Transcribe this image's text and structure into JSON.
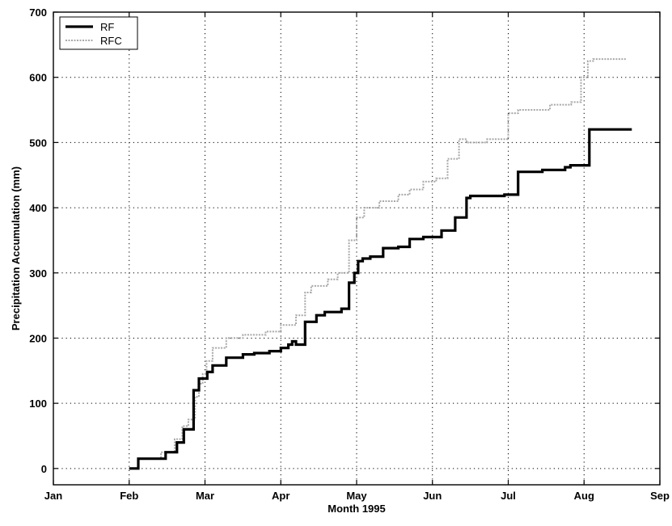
{
  "chart_data": {
    "type": "line",
    "title": "",
    "xlabel": "Month 1995",
    "ylabel": "Precipitation Accumulation (mm)",
    "xlim": [
      0,
      8
    ],
    "ylim": [
      -25,
      700
    ],
    "x_ticks": [
      {
        "label": "Jan",
        "value": 0
      },
      {
        "label": "Feb",
        "value": 1
      },
      {
        "label": "Mar",
        "value": 2
      },
      {
        "label": "Apr",
        "value": 3
      },
      {
        "label": "May",
        "value": 4
      },
      {
        "label": "Jun",
        "value": 5
      },
      {
        "label": "Jul",
        "value": 6
      },
      {
        "label": "Aug",
        "value": 7
      },
      {
        "label": "Sep",
        "value": 8
      }
    ],
    "y_ticks": [
      0,
      100,
      200,
      300,
      400,
      500,
      600,
      700
    ],
    "grid": true,
    "legend": "top-left",
    "series": [
      {
        "name": "RF",
        "color": "#000000",
        "style": "solid",
        "x": [
          1.0,
          1.12,
          1.12,
          1.48,
          1.48,
          1.63,
          1.63,
          1.72,
          1.72,
          1.85,
          1.85,
          1.92,
          1.92,
          2.03,
          2.03,
          2.1,
          2.1,
          2.28,
          2.28,
          2.5,
          2.5,
          2.65,
          2.65,
          2.85,
          2.85,
          3.0,
          3.0,
          3.1,
          3.1,
          3.15,
          3.15,
          3.2,
          3.2,
          3.32,
          3.32,
          3.47,
          3.47,
          3.58,
          3.58,
          3.8,
          3.8,
          3.9,
          3.9,
          3.97,
          3.97,
          4.02,
          4.02,
          4.08,
          4.08,
          4.18,
          4.18,
          4.35,
          4.35,
          4.55,
          4.55,
          4.7,
          4.7,
          4.88,
          4.88,
          5.12,
          5.12,
          5.3,
          5.3,
          5.45,
          5.45,
          5.5,
          5.5,
          5.95,
          5.95,
          6.13,
          6.13,
          6.45,
          6.45,
          6.75,
          6.75,
          6.82,
          6.82,
          7.07,
          7.07,
          7.63
        ],
        "y": [
          0,
          0,
          15,
          15,
          25,
          25,
          40,
          40,
          60,
          60,
          120,
          120,
          138,
          138,
          148,
          148,
          158,
          158,
          170,
          170,
          175,
          175,
          177,
          177,
          180,
          180,
          185,
          185,
          190,
          190,
          195,
          195,
          190,
          190,
          225,
          225,
          235,
          235,
          240,
          240,
          245,
          245,
          285,
          285,
          300,
          300,
          318,
          318,
          322,
          322,
          325,
          325,
          338,
          338,
          340,
          340,
          352,
          352,
          355,
          355,
          365,
          365,
          385,
          385,
          415,
          415,
          418,
          418,
          420,
          420,
          455,
          455,
          458,
          458,
          462,
          462,
          465,
          465,
          520,
          520
        ]
      },
      {
        "name": "RFC",
        "color": "#a8a8a8",
        "style": "dotted",
        "x": [
          1.0,
          1.12,
          1.12,
          1.42,
          1.42,
          1.6,
          1.6,
          1.7,
          1.7,
          1.78,
          1.78,
          1.87,
          1.87,
          1.92,
          1.92,
          1.97,
          1.97,
          2.02,
          2.02,
          2.1,
          2.1,
          2.28,
          2.28,
          2.5,
          2.5,
          2.8,
          2.8,
          3.0,
          3.0,
          3.2,
          3.2,
          3.32,
          3.32,
          3.4,
          3.4,
          3.62,
          3.62,
          3.75,
          3.75,
          3.9,
          3.9,
          4.0,
          4.0,
          4.1,
          4.1,
          4.3,
          4.3,
          4.55,
          4.55,
          4.7,
          4.7,
          4.88,
          4.88,
          5.05,
          5.05,
          5.2,
          5.2,
          5.35,
          5.35,
          5.45,
          5.45,
          5.72,
          5.72,
          6.0,
          6.0,
          6.13,
          6.13,
          6.55,
          6.55,
          6.83,
          6.83,
          6.96,
          6.96,
          7.05,
          7.05,
          7.12,
          7.12,
          7.55
        ],
        "y": [
          0,
          0,
          15,
          15,
          25,
          25,
          45,
          45,
          65,
          65,
          75,
          75,
          110,
          110,
          130,
          130,
          145,
          145,
          165,
          165,
          185,
          185,
          200,
          200,
          205,
          205,
          210,
          210,
          220,
          220,
          235,
          235,
          270,
          270,
          280,
          280,
          290,
          290,
          300,
          300,
          350,
          350,
          385,
          385,
          400,
          400,
          410,
          410,
          420,
          420,
          428,
          428,
          440,
          440,
          445,
          445,
          475,
          475,
          505,
          505,
          500,
          500,
          505,
          505,
          545,
          545,
          550,
          550,
          558,
          558,
          562,
          562,
          600,
          600,
          625,
          625,
          628,
          628
        ]
      }
    ]
  }
}
